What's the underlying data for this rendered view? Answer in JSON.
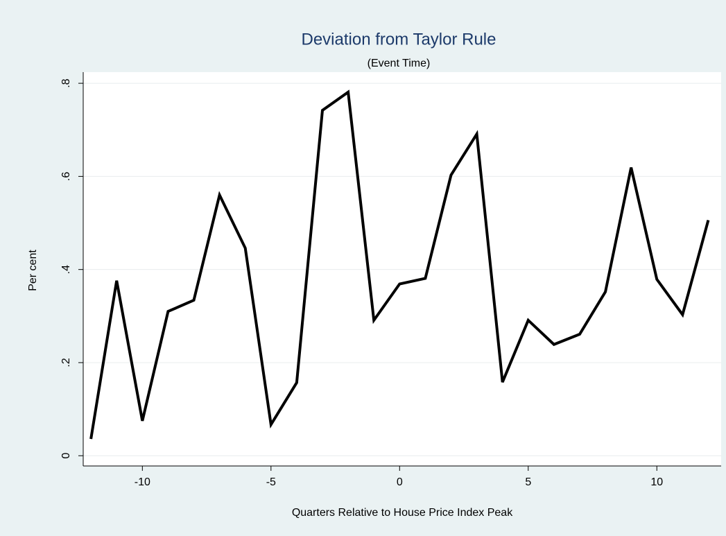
{
  "chart_data": {
    "type": "line",
    "title": "Deviation from Taylor Rule",
    "subtitle": "(Event Time)",
    "x_label": "Quarters Relative to House Price Index Peak",
    "y_label": "Per cent",
    "x": [
      -12,
      -11,
      -10,
      -9,
      -8,
      -7,
      -6,
      -5,
      -4,
      -3,
      -2,
      -1,
      0,
      1,
      2,
      3,
      4,
      5,
      6,
      7,
      8,
      9,
      10,
      11,
      12
    ],
    "series": [
      {
        "color": "#000000",
        "values": [
          0.036,
          0.376,
          0.075,
          0.31,
          0.334,
          0.56,
          0.446,
          0.067,
          0.157,
          0.742,
          0.781,
          0.291,
          0.369,
          0.381,
          0.603,
          0.691,
          0.158,
          0.291,
          0.239,
          0.261,
          0.352,
          0.619,
          0.379,
          0.303,
          0.506
        ]
      }
    ],
    "xlim": [
      -12.3,
      12.5
    ],
    "ylim": [
      -0.022,
      0.824
    ],
    "xticks": [
      -10,
      -5,
      0,
      5,
      10
    ],
    "yticks": [
      0,
      {
        "value": 0.2,
        "label": ".2"
      },
      {
        "value": 0.4,
        "label": ".4"
      },
      {
        "value": 0.6,
        "label": ".6"
      },
      {
        "value": 0.8,
        "label": ".8"
      }
    ],
    "grid": true
  }
}
